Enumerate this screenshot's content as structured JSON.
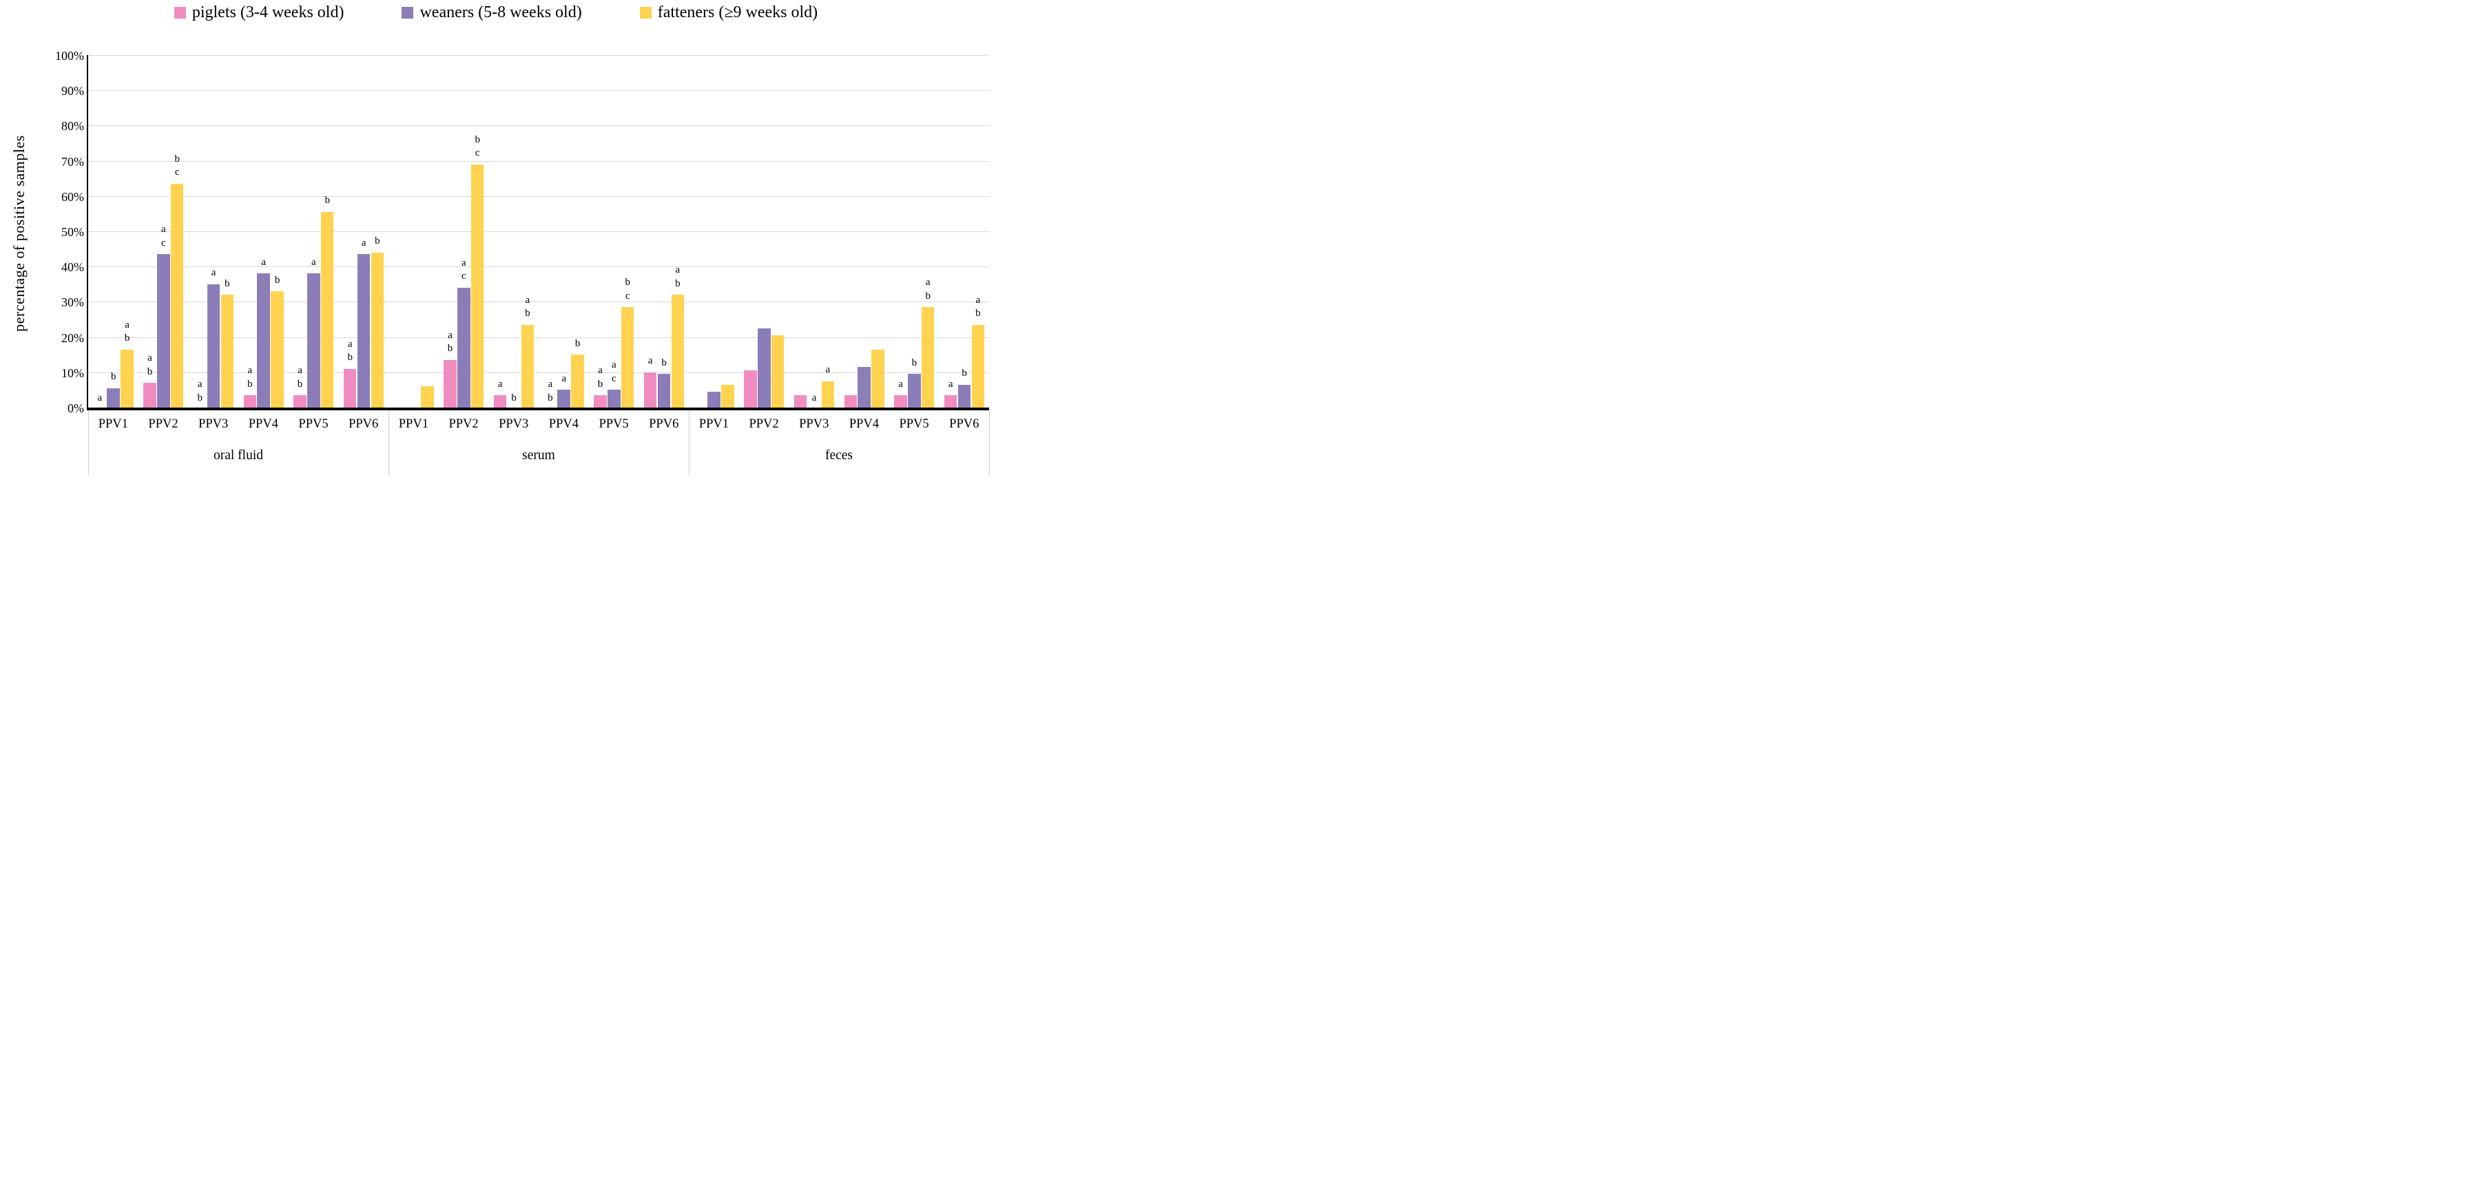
{
  "legend": [
    {
      "label": "piglets (3-4 weeks old)",
      "color": "#F08CC0"
    },
    {
      "label": "weaners (5-8 weeks old)",
      "color": "#8B7DB8"
    },
    {
      "label": "fatteners (≥9 weeks old)",
      "color": "#FFD34F"
    }
  ],
  "y_axis": {
    "title": "percentage of positive samples",
    "min": 0,
    "max": 100,
    "step": 10,
    "tick_suffix": "%",
    "gridline_color": "#d9d9d9"
  },
  "chart_data": {
    "type": "bar",
    "title": "",
    "xlabel": "",
    "ylabel": "percentage of positive samples",
    "ylim": [
      0,
      100
    ],
    "grid": true,
    "legend_position": "top",
    "categories": [
      "PPV1",
      "PPV2",
      "PPV3",
      "PPV4",
      "PPV5",
      "PPV6"
    ],
    "groups": [
      {
        "name": "oral fluid",
        "series": [
          {
            "name": "piglets (3-4 weeks old)",
            "color": "#F08CC0",
            "values": [
              0,
              7,
              0,
              3.5,
              3.5,
              11
            ],
            "letters": [
              [
                "a"
              ],
              [
                "a",
                "b"
              ],
              [
                "a",
                "b"
              ],
              [
                "a",
                "b"
              ],
              [
                "a",
                "b"
              ],
              [
                "a",
                "b"
              ]
            ]
          },
          {
            "name": "weaners (5-8 weeks old)",
            "color": "#8B7DB8",
            "values": [
              5.5,
              43.5,
              35,
              38,
              38,
              43.5
            ],
            "letters": [
              [
                "b"
              ],
              [
                "a",
                "c"
              ],
              [
                "a"
              ],
              [
                "a"
              ],
              [
                "a"
              ],
              [
                "a"
              ]
            ]
          },
          {
            "name": "fatteners (≥9 weeks old)",
            "color": "#FFD34F",
            "values": [
              16.5,
              63.5,
              32,
              33,
              55.5,
              44
            ],
            "letters": [
              [
                "a",
                "b"
              ],
              [
                "b",
                "c"
              ],
              [
                "b"
              ],
              [
                "b"
              ],
              [
                "b"
              ],
              [
                "b"
              ]
            ]
          }
        ]
      },
      {
        "name": "serum",
        "series": [
          {
            "name": "piglets (3-4 weeks old)",
            "color": "#F08CC0",
            "values": [
              0,
              13.5,
              3.5,
              0,
              3.5,
              10
            ],
            "letters": [
              [],
              [
                "a",
                "b"
              ],
              [
                "a"
              ],
              [
                "a",
                "b"
              ],
              [
                "a",
                "b"
              ],
              [
                "a"
              ]
            ]
          },
          {
            "name": "weaners (5-8 weeks old)",
            "color": "#8B7DB8",
            "values": [
              0,
              34,
              0,
              5,
              5,
              9.5
            ],
            "letters": [
              [],
              [
                "a",
                "c"
              ],
              [
                "b"
              ],
              [
                "a"
              ],
              [
                "a",
                "c"
              ],
              [
                "b"
              ]
            ]
          },
          {
            "name": "fatteners (≥9 weeks old)",
            "color": "#FFD34F",
            "values": [
              6,
              69,
              23.5,
              15,
              28.5,
              32
            ],
            "letters": [
              [],
              [
                "b",
                "c"
              ],
              [
                "a",
                "b"
              ],
              [
                "b"
              ],
              [
                "b",
                "c"
              ],
              [
                "a",
                "b"
              ]
            ]
          }
        ]
      },
      {
        "name": "feces",
        "series": [
          {
            "name": "piglets (3-4 weeks old)",
            "color": "#F08CC0",
            "values": [
              0,
              10.5,
              3.5,
              3.5,
              3.5,
              3.5
            ],
            "letters": [
              [],
              [],
              [],
              [],
              [
                "a"
              ],
              [
                "a"
              ]
            ]
          },
          {
            "name": "weaners (5-8 weeks old)",
            "color": "#8B7DB8",
            "values": [
              4.5,
              22.5,
              0,
              11.5,
              9.5,
              6.5
            ],
            "letters": [
              [],
              [],
              [
                "a"
              ],
              [],
              [
                "b"
              ],
              [
                "b"
              ]
            ]
          },
          {
            "name": "fatteners (≥9 weeks old)",
            "color": "#FFD34F",
            "values": [
              6.5,
              20.5,
              7.5,
              16.5,
              28.5,
              23.5
            ],
            "letters": [
              [],
              [],
              [
                "a"
              ],
              [],
              [
                "a",
                "b"
              ],
              [
                "a",
                "b"
              ]
            ]
          }
        ]
      }
    ]
  }
}
